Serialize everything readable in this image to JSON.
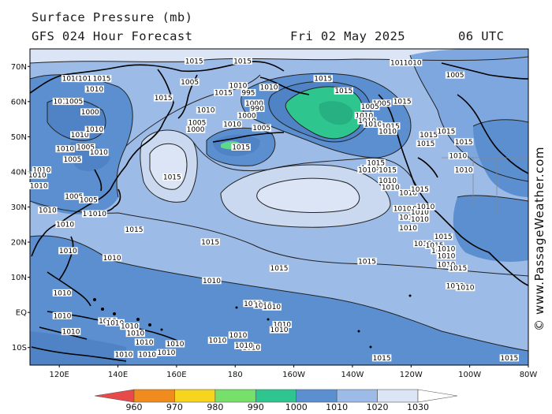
{
  "header": {
    "title": "Surface Pressure (mb)",
    "forecast": "GFS 024 Hour Forecast",
    "date": "Fri 02 May 2025",
    "time": "06 UTC"
  },
  "credit": "© www.PassageWeather.com",
  "axes": {
    "lat_labels": [
      "70N",
      "60N",
      "50N",
      "40N",
      "30N",
      "20N",
      "10N",
      "EQ",
      "10S"
    ],
    "lon_labels": [
      "120E",
      "140E",
      "160E",
      "180",
      "160W",
      "140W",
      "120W",
      "100W",
      "80W"
    ]
  },
  "colorbar": {
    "levels": [
      "960",
      "970",
      "980",
      "990",
      "1000",
      "1010",
      "1020",
      "1030"
    ],
    "colors": [
      "#e84a4a",
      "#f08c1e",
      "#f7d51f",
      "#76e06a",
      "#2fc58e",
      "#5b8fd0",
      "#9dbbe7",
      "#dbe5f5",
      "#ffffff"
    ]
  },
  "isobar_labels": [
    {
      "t": "1015",
      "lon": 166.0,
      "lat": 71.0
    },
    {
      "t": "1010",
      "lon": 124.0,
      "lat": 66.0
    },
    {
      "t": "1010",
      "lon": 129.5,
      "lat": 66.0
    },
    {
      "t": "1015",
      "lon": 134.5,
      "lat": 66.0
    },
    {
      "t": "1010",
      "lon": 132.0,
      "lat": 63.0
    },
    {
      "t": "1005",
      "lon": 164.5,
      "lat": 65.0
    },
    {
      "t": "1010",
      "lon": 181.0,
      "lat": 64.0
    },
    {
      "t": "1015",
      "lon": 182.5,
      "lat": 71.0
    },
    {
      "t": "1015",
      "lon": 155.5,
      "lat": 60.5
    },
    {
      "t": "1015",
      "lon": 176.0,
      "lat": 62.0
    },
    {
      "t": "1010",
      "lon": 170.0,
      "lat": 57.0
    },
    {
      "t": "995",
      "lon": 184.5,
      "lat": 62.0
    },
    {
      "t": "1000",
      "lon": 186.5,
      "lat": 59.0
    },
    {
      "t": "990",
      "lon": 187.5,
      "lat": 57.5
    },
    {
      "t": "1010",
      "lon": 191.5,
      "lat": 63.5
    },
    {
      "t": "1000",
      "lon": 184.0,
      "lat": 55.5
    },
    {
      "t": "1005",
      "lon": 189.0,
      "lat": 52.0
    },
    {
      "t": "1015",
      "lon": 210.0,
      "lat": 66.0
    },
    {
      "t": "1010",
      "lon": 121.0,
      "lat": 59.5
    },
    {
      "t": "1005",
      "lon": 125.0,
      "lat": 59.5
    },
    {
      "t": "1000",
      "lon": 130.5,
      "lat": 56.5
    },
    {
      "t": "1010",
      "lon": 127.0,
      "lat": 50.0
    },
    {
      "t": "1010",
      "lon": 132.0,
      "lat": 51.5
    },
    {
      "t": "1005",
      "lon": 129.0,
      "lat": 46.5
    },
    {
      "t": "1010",
      "lon": 133.5,
      "lat": 45.0
    },
    {
      "t": "1005",
      "lon": 167.0,
      "lat": 53.5
    },
    {
      "t": "1000",
      "lon": 166.5,
      "lat": 51.5
    },
    {
      "t": "1010",
      "lon": 179.0,
      "lat": 53.0
    },
    {
      "t": "1015",
      "lon": 182.0,
      "lat": 46.5
    },
    {
      "t": "1015",
      "lon": 158.5,
      "lat": 38.0
    },
    {
      "t": "1010",
      "lon": 122.0,
      "lat": 46.0
    },
    {
      "t": "1005",
      "lon": 124.5,
      "lat": 43.0
    },
    {
      "t": "1010",
      "lon": 114.0,
      "lat": 40.0
    },
    {
      "t": "1010",
      "lon": 112.5,
      "lat": 38.5
    },
    {
      "t": "1010",
      "lon": 113.0,
      "lat": 35.5
    },
    {
      "t": "1005",
      "lon": 125.0,
      "lat": 32.5
    },
    {
      "t": "1005",
      "lon": 130.0,
      "lat": 31.5
    },
    {
      "t": "1010",
      "lon": 131.0,
      "lat": 27.5
    },
    {
      "t": "1010",
      "lon": 133.0,
      "lat": 27.5
    },
    {
      "t": "1010",
      "lon": 116.0,
      "lat": 28.5
    },
    {
      "t": "1010",
      "lon": 122.0,
      "lat": 24.5
    },
    {
      "t": "1010",
      "lon": 123.0,
      "lat": 17.0
    },
    {
      "t": "1015",
      "lon": 145.5,
      "lat": 23.0
    },
    {
      "t": "1015",
      "lon": 171.5,
      "lat": 19.5
    },
    {
      "t": "1015",
      "lon": 195.0,
      "lat": 12.0
    },
    {
      "t": "1010",
      "lon": 138.0,
      "lat": 15.0
    },
    {
      "t": "1010",
      "lon": 172.0,
      "lat": 8.5
    },
    {
      "t": "1010",
      "lon": 121.0,
      "lat": 5.0
    },
    {
      "t": "1010",
      "lon": 121.0,
      "lat": -1.5
    },
    {
      "t": "1010",
      "lon": 124.0,
      "lat": -6.0
    },
    {
      "t": "1010",
      "lon": 136.5,
      "lat": -3.0
    },
    {
      "t": "1010",
      "lon": 139.0,
      "lat": -3.5
    },
    {
      "t": "1010",
      "lon": 144.0,
      "lat": -4.5
    },
    {
      "t": "1010",
      "lon": 146.0,
      "lat": -6.5
    },
    {
      "t": "1010",
      "lon": 149.0,
      "lat": -9.0
    },
    {
      "t": "1010",
      "lon": 159.5,
      "lat": -9.5
    },
    {
      "t": "1010",
      "lon": 142.0,
      "lat": -12.5
    },
    {
      "t": "1010",
      "lon": 150.0,
      "lat": -12.5
    },
    {
      "t": "1010",
      "lon": 156.5,
      "lat": -12.0
    },
    {
      "t": "1010",
      "lon": 185.5,
      "lat": -10.5
    },
    {
      "t": "1010",
      "lon": 174.0,
      "lat": -8.5
    },
    {
      "t": "1010",
      "lon": 196.0,
      "lat": -4.0
    },
    {
      "t": "1010",
      "lon": 195.0,
      "lat": -5.5
    },
    {
      "t": "1010",
      "lon": 181.0,
      "lat": -7.0
    },
    {
      "t": "1010",
      "lon": 183.0,
      "lat": -10.0
    },
    {
      "t": "1010",
      "lon": 186.0,
      "lat": 2.0
    },
    {
      "t": "1010",
      "lon": 189.5,
      "lat": 1.5
    },
    {
      "t": "1010",
      "lon": 192.5,
      "lat": 1.0
    },
    {
      "t": "1015",
      "lon": 230.0,
      "lat": -13.5
    },
    {
      "t": "1015",
      "lon": 273.5,
      "lat": -13.5
    },
    {
      "t": "1015",
      "lon": 225.0,
      "lat": 14.0
    },
    {
      "t": "1015",
      "lon": 226.0,
      "lat": 40.5
    },
    {
      "t": "1015",
      "lon": 228.0,
      "lat": 42.0
    },
    {
      "t": "1015",
      "lon": 217.0,
      "lat": 62.5
    },
    {
      "t": "1010",
      "lon": 236.0,
      "lat": 70.5
    },
    {
      "t": "1010",
      "lon": 240.5,
      "lat": 70.5
    },
    {
      "t": "1005",
      "lon": 255.0,
      "lat": 67.0
    },
    {
      "t": "1015",
      "lon": 237.0,
      "lat": 59.5
    },
    {
      "t": "1005",
      "lon": 230.0,
      "lat": 59.0
    },
    {
      "t": "1005",
      "lon": 226.0,
      "lat": 58.0
    },
    {
      "t": "1010",
      "lon": 224.0,
      "lat": 55.5
    },
    {
      "t": "1010",
      "lon": 225.0,
      "lat": 54.0
    },
    {
      "t": "1010",
      "lon": 227.0,
      "lat": 53.0
    },
    {
      "t": "1015",
      "lon": 233.0,
      "lat": 52.5
    },
    {
      "t": "1010",
      "lon": 232.0,
      "lat": 51.0
    },
    {
      "t": "1015",
      "lon": 246.0,
      "lat": 50.0
    },
    {
      "t": "1015",
      "lon": 245.0,
      "lat": 47.5
    },
    {
      "t": "1010",
      "lon": 225.0,
      "lat": 40.0
    },
    {
      "t": "1015",
      "lon": 232.0,
      "lat": 40.0
    },
    {
      "t": "1010",
      "lon": 232.0,
      "lat": 37.0
    },
    {
      "t": "1010",
      "lon": 233.0,
      "lat": 35.0
    },
    {
      "t": "1010",
      "lon": 239.0,
      "lat": 33.5
    },
    {
      "t": "1015",
      "lon": 243.0,
      "lat": 34.5
    },
    {
      "t": "1010",
      "lon": 239.0,
      "lat": 29.0
    },
    {
      "t": "1010",
      "lon": 237.0,
      "lat": 29.0
    },
    {
      "t": "1010",
      "lon": 239.0,
      "lat": 26.5
    },
    {
      "t": "1010",
      "lon": 243.0,
      "lat": 28.0
    },
    {
      "t": "1010",
      "lon": 243.0,
      "lat": 26.0
    },
    {
      "t": "1010",
      "lon": 245.0,
      "lat": 29.5
    },
    {
      "t": "1015",
      "lon": 251.0,
      "lat": 21.0
    },
    {
      "t": "1010",
      "lon": 239.0,
      "lat": 23.5
    },
    {
      "t": "1010",
      "lon": 244.0,
      "lat": 19.0
    },
    {
      "t": "1015",
      "lon": 248.0,
      "lat": 18.5
    },
    {
      "t": "1015",
      "lon": 250.0,
      "lat": 17.0
    },
    {
      "t": "1010",
      "lon": 252.0,
      "lat": 17.5
    },
    {
      "t": "1010",
      "lon": 252.0,
      "lat": 15.5
    },
    {
      "t": "1010",
      "lon": 252.0,
      "lat": 13.0
    },
    {
      "t": "1015",
      "lon": 256.0,
      "lat": 12.0
    },
    {
      "t": "1010",
      "lon": 255.0,
      "lat": 7.0
    },
    {
      "t": "1010",
      "lon": 258.5,
      "lat": 6.5
    },
    {
      "t": "1015",
      "lon": 252.0,
      "lat": 51.0
    },
    {
      "t": "1010",
      "lon": 256.0,
      "lat": 44.0
    },
    {
      "t": "1010",
      "lon": 258.0,
      "lat": 40.0
    },
    {
      "t": "1015",
      "lon": 258.0,
      "lat": 48.0
    }
  ]
}
